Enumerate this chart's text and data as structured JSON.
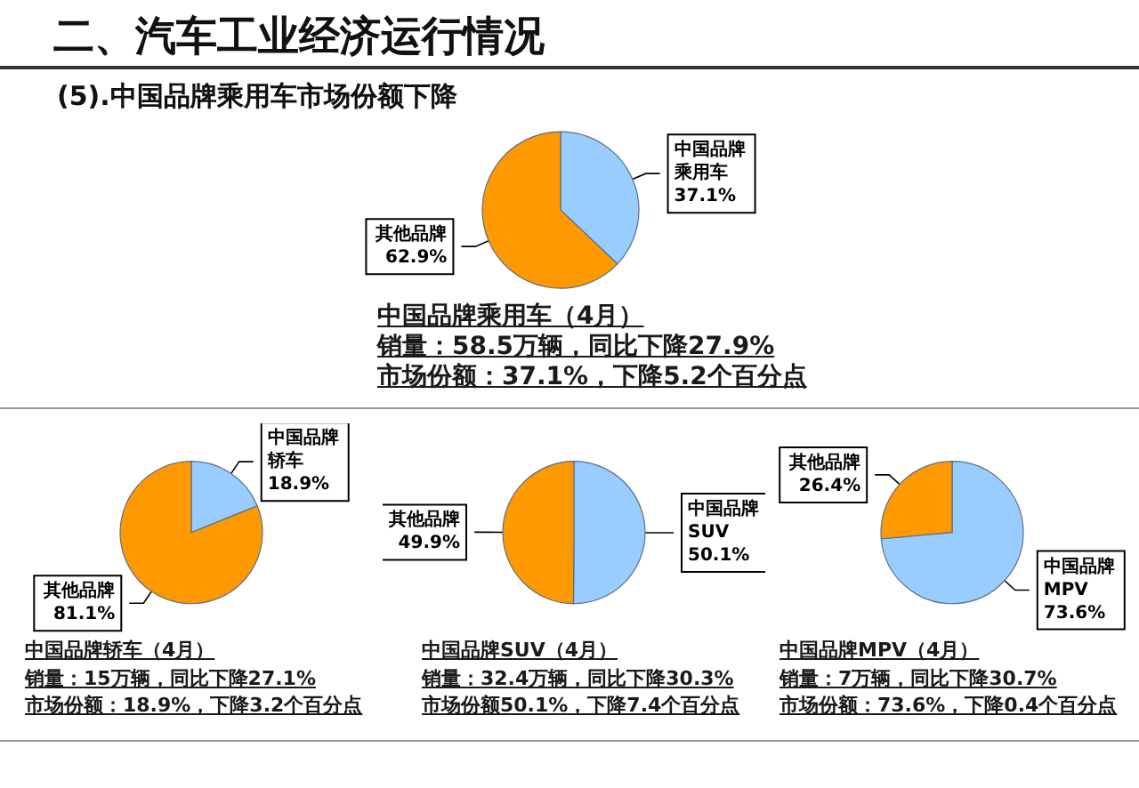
{
  "chart_data": [
    {
      "type": "pie",
      "title": "二、汽车工业经济运行情况",
      "subtitle": "(5).中国品牌乘用车市场份额下降",
      "categories": [
        "中国品牌乘用车",
        "其他品牌"
      ],
      "values": [
        37.1,
        62.9
      ],
      "value_labels": [
        "37.1%",
        "62.9%"
      ],
      "colors": [
        "#99ccff",
        "#ff9900"
      ],
      "annotations": [
        "中国品牌乘用车（4月）",
        "销量：58.5万辆，同比下降27.9%",
        "市场份额：37.1%，下降5.2个百分点"
      ]
    },
    {
      "type": "pie",
      "categories": [
        "中国品牌轿车",
        "其他品牌"
      ],
      "values": [
        18.9,
        81.1
      ],
      "value_labels": [
        "18.9%",
        "81.1%"
      ],
      "colors": [
        "#99ccff",
        "#ff9900"
      ],
      "annotations": [
        "中国品牌轿车（4月）",
        "销量：15万辆，同比下降27.1%",
        "市场份额：18.9%，下降3.2个百分点"
      ]
    },
    {
      "type": "pie",
      "categories": [
        "中国品牌SUV",
        "其他品牌"
      ],
      "values": [
        50.1,
        49.9
      ],
      "value_labels": [
        "50.1%",
        "49.9%"
      ],
      "colors": [
        "#99ccff",
        "#ff9900"
      ],
      "annotations": [
        "中国品牌SUV（4月）",
        "销量：32.4万辆，同比下降30.3%",
        "市场份额50.1%，下降7.4个百分点"
      ]
    },
    {
      "type": "pie",
      "categories": [
        "中国品牌MPV",
        "其他品牌"
      ],
      "values": [
        73.6,
        26.4
      ],
      "value_labels": [
        "73.6%",
        "26.4%"
      ],
      "colors": [
        "#99ccff",
        "#ff9900"
      ],
      "annotations": [
        "中国品牌MPV（4月）",
        "销量：7万辆，同比下降30.7%",
        "市场份额：73.6%，下降0.4个百分点"
      ]
    }
  ]
}
